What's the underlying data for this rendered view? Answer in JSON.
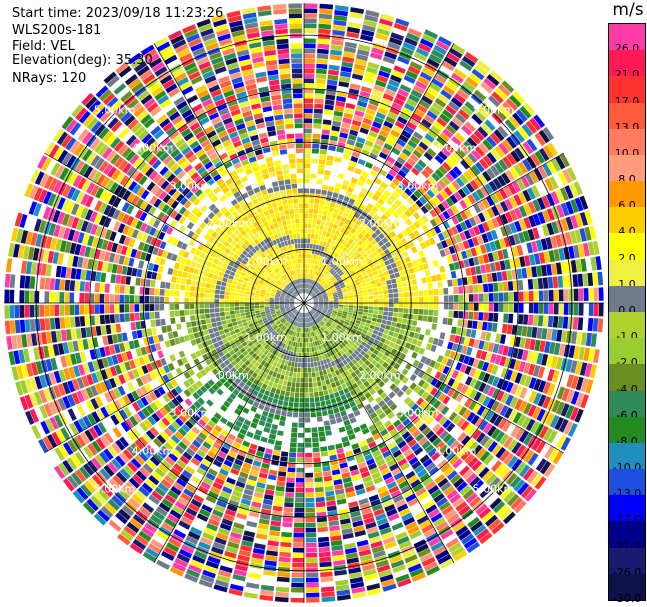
{
  "info": {
    "start_time": "Start time: 2023/09/18 11:23:26",
    "instrument": "WLS200s-181",
    "field": "Field: VEL",
    "elevation": "Elevation(deg): 35.30",
    "nrays": "NRays: 120"
  },
  "colorbar": {
    "unit": "m/s",
    "labels": [
      "26.0",
      "21.0",
      "17.0",
      "13.0",
      "10.0",
      "8.0",
      "6.0",
      "4.0",
      "2.0",
      "1.0",
      "0.0",
      "-1.0",
      "-2.0",
      "-4.0",
      "-6.0",
      "-8.0",
      "-10.0",
      "-13.0",
      "-17.0",
      "-21.0",
      "-26.0",
      "-30.0"
    ],
    "colors": [
      "#ff3ba8",
      "#ff1a55",
      "#ff3030",
      "#ff5a3c",
      "#ff7b62",
      "#ff9c7c",
      "#ff9a00",
      "#ffcc00",
      "#ffff00",
      "#f0f040",
      "#6e7b8b",
      "#b0d02e",
      "#9acd32",
      "#6b8e23",
      "#2e8b57",
      "#228b22",
      "#1f8fbf",
      "#1e4fe0",
      "#0000ff",
      "#00008b",
      "#1a1a70",
      "#10104a"
    ]
  },
  "chart_data": {
    "type": "ppi",
    "field": "VEL",
    "units": "m/s",
    "color_range": [
      -30.0,
      26.0
    ],
    "rays": 120,
    "range_rings_km": [
      1.0,
      2.0,
      3.0,
      4.0,
      5.0
    ],
    "ring_labels": [
      "1.00km",
      "2.00km",
      "3.00km",
      "4.00km",
      "5.00km"
    ],
    "azimuth_spokes_deg": [
      0,
      30,
      60,
      90,
      120,
      150,
      180,
      210,
      240,
      270,
      300,
      330
    ],
    "max_range_km": 5.6,
    "pattern": {
      "near_field_km": 2.8,
      "northern_half": "positive (yellow, ~2 to 4 m/s)",
      "southern_half": "negative (green, ~-2 to -6 m/s)",
      "center_spiral": "near-zero grey",
      "far_field": "noisy, full color range"
    }
  }
}
